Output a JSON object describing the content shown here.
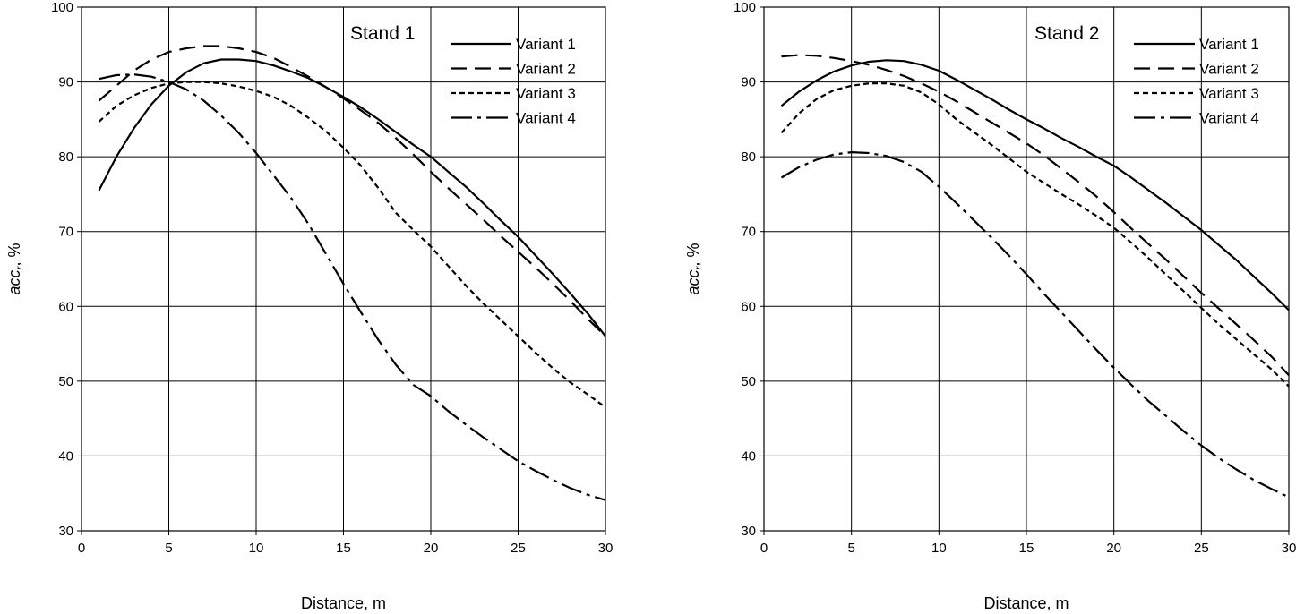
{
  "chart_data": [
    {
      "type": "line",
      "title": "Stand 1",
      "xlabel": "Distance, m",
      "ylabel_main": "acc",
      "ylabel_sub": "r",
      "ylabel_unit": ", %",
      "xlim": [
        0,
        30
      ],
      "ylim": [
        30,
        100
      ],
      "xticks": [
        0,
        5,
        10,
        15,
        20,
        25,
        30
      ],
      "yticks": [
        30,
        40,
        50,
        60,
        70,
        80,
        90,
        100
      ],
      "grid": true,
      "legend_position": "top-right",
      "series": [
        {
          "name": "Variant 1",
          "dash": "solid",
          "x": [
            1,
            2,
            3,
            4,
            5,
            6,
            7,
            8,
            9,
            10,
            11,
            12,
            13,
            14,
            15,
            16,
            17,
            18,
            19,
            20,
            21,
            22,
            23,
            24,
            25,
            26,
            27,
            28,
            29,
            30
          ],
          "y": [
            75.5,
            80.0,
            83.8,
            87.0,
            89.5,
            91.3,
            92.5,
            93.0,
            93.0,
            92.8,
            92.2,
            91.4,
            90.5,
            89.3,
            88.0,
            86.6,
            85.0,
            83.3,
            81.6,
            80.0,
            78.0,
            76.0,
            73.8,
            71.5,
            69.3,
            66.8,
            64.3,
            61.7,
            59.0,
            56.0
          ]
        },
        {
          "name": "Variant 2",
          "dash": "long-dash",
          "x": [
            1,
            2,
            3,
            4,
            5,
            6,
            7,
            8,
            9,
            10,
            11,
            12,
            13,
            14,
            15,
            16,
            17,
            18,
            19,
            20,
            21,
            22,
            23,
            24,
            25,
            26,
            27,
            28,
            29,
            30
          ],
          "y": [
            87.5,
            89.5,
            91.5,
            93.0,
            94.0,
            94.5,
            94.8,
            94.8,
            94.5,
            94.0,
            93.2,
            92.0,
            90.7,
            89.3,
            87.8,
            86.2,
            84.5,
            82.5,
            80.3,
            78.0,
            75.8,
            73.7,
            71.6,
            69.4,
            67.3,
            65.2,
            63.0,
            60.7,
            58.3,
            56.0
          ]
        },
        {
          "name": "Variant 3",
          "dash": "short-dash",
          "x": [
            1,
            2,
            3,
            4,
            5,
            6,
            7,
            8,
            9,
            10,
            11,
            12,
            13,
            14,
            15,
            16,
            17,
            18,
            19,
            20,
            21,
            22,
            23,
            24,
            25,
            26,
            27,
            28,
            29,
            30
          ],
          "y": [
            84.7,
            86.8,
            88.2,
            89.2,
            89.8,
            90.0,
            90.0,
            89.8,
            89.4,
            88.8,
            88.0,
            86.8,
            85.2,
            83.4,
            81.2,
            78.8,
            75.8,
            72.5,
            70.2,
            68.0,
            65.4,
            62.8,
            60.4,
            58.2,
            56.0,
            53.8,
            51.7,
            49.8,
            48.2,
            46.5
          ]
        },
        {
          "name": "Variant 4",
          "dash": "dash-dot",
          "x": [
            1,
            2,
            3,
            4,
            5,
            6,
            7,
            8,
            9,
            10,
            11,
            12,
            13,
            14,
            15,
            16,
            17,
            18,
            19,
            20,
            21,
            22,
            23,
            24,
            25,
            26,
            27,
            28,
            29,
            30
          ],
          "y": [
            90.4,
            90.9,
            91.0,
            90.7,
            90.0,
            89.0,
            87.5,
            85.5,
            83.2,
            80.5,
            77.5,
            74.5,
            71.0,
            67.0,
            63.0,
            59.2,
            55.5,
            52.2,
            49.5,
            48.0,
            46.0,
            44.2,
            42.5,
            40.9,
            39.3,
            38.0,
            36.8,
            35.7,
            34.8,
            34.1
          ]
        }
      ]
    },
    {
      "type": "line",
      "title": "Stand 2",
      "xlabel": "Distance, m",
      "ylabel_main": "acc",
      "ylabel_sub": "r",
      "ylabel_unit": ", %",
      "xlim": [
        0,
        30
      ],
      "ylim": [
        30,
        100
      ],
      "xticks": [
        0,
        5,
        10,
        15,
        20,
        25,
        30
      ],
      "yticks": [
        30,
        40,
        50,
        60,
        70,
        80,
        90,
        100
      ],
      "grid": true,
      "legend_position": "top-right",
      "series": [
        {
          "name": "Variant 1",
          "dash": "solid",
          "x": [
            1,
            2,
            3,
            4,
            5,
            6,
            7,
            8,
            9,
            10,
            11,
            12,
            13,
            14,
            15,
            16,
            17,
            18,
            19,
            20,
            21,
            22,
            23,
            24,
            25,
            26,
            27,
            28,
            29,
            30
          ],
          "y": [
            86.8,
            88.7,
            90.2,
            91.4,
            92.2,
            92.7,
            92.9,
            92.8,
            92.3,
            91.5,
            90.3,
            89.0,
            87.7,
            86.3,
            85.0,
            83.8,
            82.5,
            81.3,
            80.0,
            78.8,
            77.2,
            75.5,
            73.8,
            72.0,
            70.2,
            68.2,
            66.2,
            64.0,
            61.8,
            59.5
          ]
        },
        {
          "name": "Variant 2",
          "dash": "long-dash",
          "x": [
            1,
            2,
            3,
            4,
            5,
            6,
            7,
            8,
            9,
            10,
            11,
            12,
            13,
            14,
            15,
            16,
            17,
            18,
            19,
            20,
            21,
            22,
            23,
            24,
            25,
            26,
            27,
            28,
            29,
            30
          ],
          "y": [
            93.4,
            93.6,
            93.5,
            93.2,
            92.8,
            92.3,
            91.6,
            90.8,
            89.8,
            88.7,
            87.4,
            86.0,
            84.6,
            83.2,
            81.8,
            80.2,
            78.4,
            76.6,
            74.7,
            72.6,
            70.4,
            68.3,
            66.2,
            64.0,
            61.8,
            59.7,
            57.6,
            55.5,
            53.3,
            50.8
          ]
        },
        {
          "name": "Variant 3",
          "dash": "short-dash",
          "x": [
            1,
            2,
            3,
            4,
            5,
            6,
            7,
            8,
            9,
            10,
            11,
            12,
            13,
            14,
            15,
            16,
            17,
            18,
            19,
            20,
            21,
            22,
            23,
            24,
            25,
            26,
            27,
            28,
            29,
            30
          ],
          "y": [
            83.2,
            85.8,
            87.7,
            88.9,
            89.5,
            89.8,
            89.8,
            89.5,
            88.6,
            87.0,
            85.0,
            83.3,
            81.6,
            79.8,
            78.0,
            76.5,
            75.0,
            73.6,
            72.1,
            70.5,
            68.5,
            66.4,
            64.2,
            62.0,
            59.8,
            57.6,
            55.6,
            53.6,
            51.6,
            49.3
          ]
        },
        {
          "name": "Variant 4",
          "dash": "dash-dot",
          "x": [
            1,
            2,
            3,
            4,
            5,
            6,
            7,
            8,
            9,
            10,
            11,
            12,
            13,
            14,
            15,
            16,
            17,
            18,
            19,
            20,
            21,
            22,
            23,
            24,
            25,
            26,
            27,
            28,
            29,
            30
          ],
          "y": [
            77.2,
            78.6,
            79.6,
            80.3,
            80.6,
            80.5,
            80.1,
            79.3,
            78.0,
            76.0,
            73.8,
            71.5,
            69.2,
            66.8,
            64.3,
            61.7,
            59.2,
            56.7,
            54.2,
            51.8,
            49.5,
            47.3,
            45.3,
            43.3,
            41.4,
            39.7,
            38.2,
            36.8,
            35.6,
            34.5
          ]
        }
      ]
    }
  ]
}
